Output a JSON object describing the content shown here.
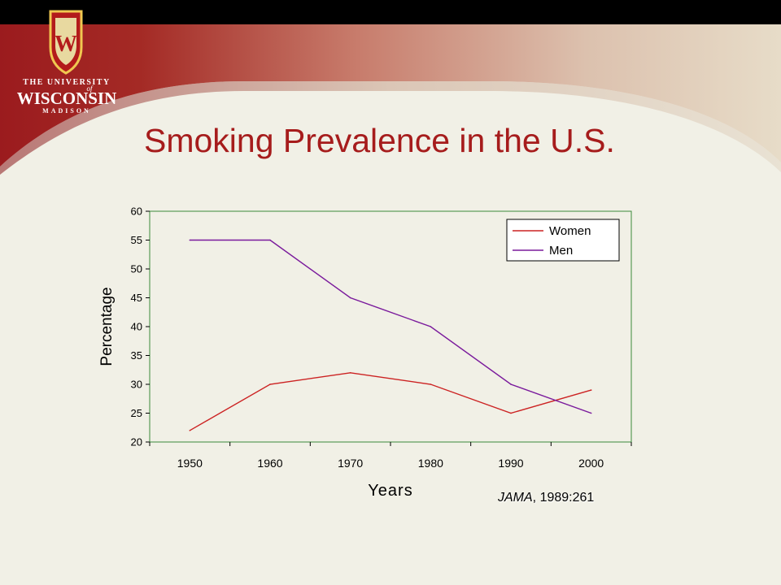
{
  "header": {
    "logo": {
      "line1": "THE UNIVERSITY",
      "line2": "of",
      "line3": "WISCONSIN",
      "line4": "MADISON",
      "crest_letter": "W"
    },
    "title": "Smoking Prevalence in the U.S."
  },
  "citation": {
    "journal": "JAMA",
    "rest": ", 1989:261"
  },
  "colors": {
    "title": "#a61c1c",
    "women": "#cc2222",
    "men": "#7a1a9c",
    "plot_border": "#3a8a3a",
    "banner_red": "#9b1b1e"
  },
  "chart_data": {
    "type": "line",
    "title": "",
    "xlabel": "Years",
    "ylabel": "Percentage",
    "categories": [
      "1950",
      "1960",
      "1970",
      "1980",
      "1990",
      "2000"
    ],
    "y_ticks": [
      "20",
      "25",
      "30",
      "35",
      "40",
      "45",
      "50",
      "55",
      "60"
    ],
    "ylim": [
      20,
      60
    ],
    "grid": false,
    "legend_position": "top-right",
    "series": [
      {
        "name": "Women",
        "color": "#cc2222",
        "values": [
          22,
          30,
          32,
          30,
          25,
          29
        ]
      },
      {
        "name": "Men",
        "color": "#7a1a9c",
        "values": [
          55,
          55,
          45,
          40,
          30,
          25
        ]
      }
    ]
  }
}
